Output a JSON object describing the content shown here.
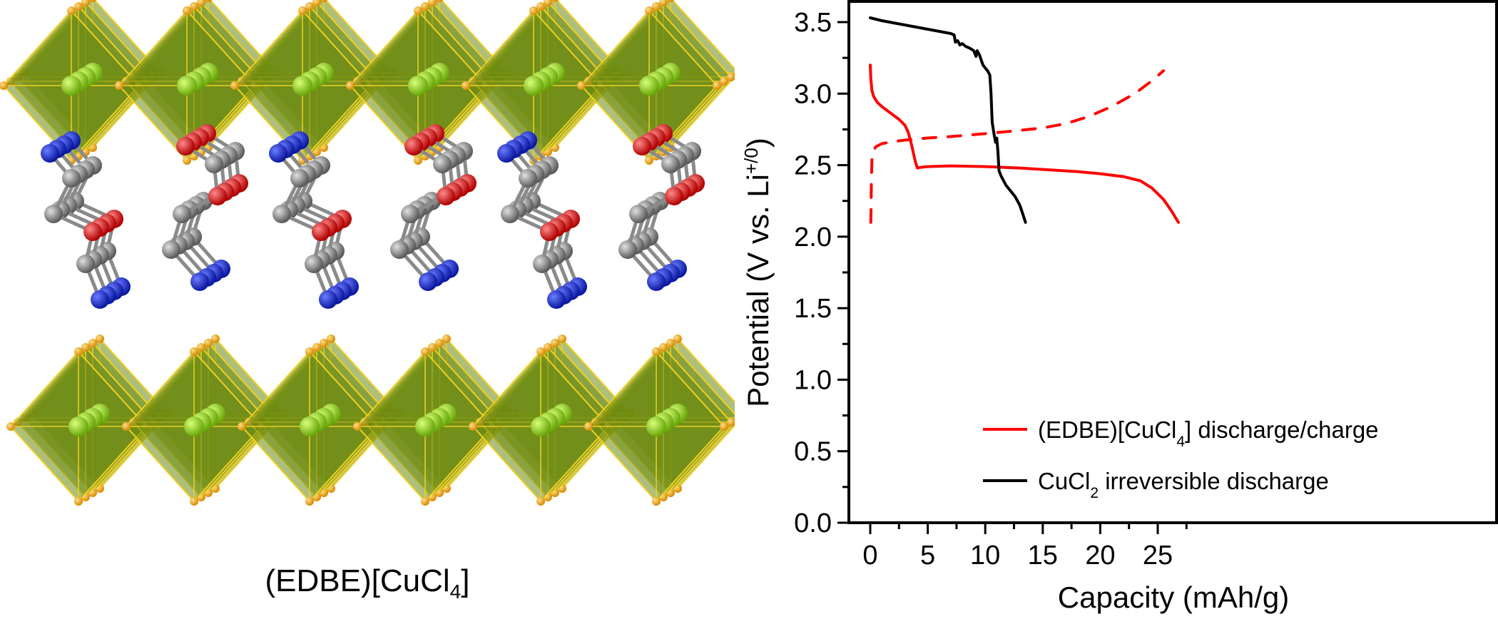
{
  "figure": {
    "left_panel": {
      "caption_main": "(EDBE)[CuCl",
      "caption_sub": "4",
      "caption_tail": "]",
      "description": "Crystal structure of layered perovskite with corner-sharing CuCl6 octahedra and EDBE organic cations",
      "atom_colors": {
        "copper": "#8fd11a",
        "chlorine": "#f0a010",
        "nitrogen": "#1020c8",
        "carbon": "#808080",
        "oxygen": "#e00000",
        "octahedron_face": "#6b8a10",
        "octahedron_edge": "#f0d020"
      }
    }
  },
  "chart_data": {
    "type": "line",
    "title": "",
    "xlabel": "Capacity (mAh/g)",
    "ylabel_main": "Potential (V vs. Li",
    "ylabel_sup": "+/0",
    "ylabel_tail": ")",
    "xlim": [
      -1.2,
      28.5
    ],
    "ylim": [
      0.0,
      3.65
    ],
    "x_ticks": [
      0,
      5,
      10,
      15,
      20,
      25
    ],
    "x_tick_labels": [
      "0",
      "5",
      "10",
      "15",
      "20",
      "25"
    ],
    "y_ticks": [
      0.0,
      0.5,
      1.0,
      1.5,
      2.0,
      2.5,
      3.0,
      3.5
    ],
    "y_tick_labels": [
      "0.0",
      "0.5",
      "1.0",
      "1.5",
      "2.0",
      "2.5",
      "3.0",
      "3.5"
    ],
    "grid": false,
    "legend_position": "bottom-right",
    "legend": [
      {
        "label_main": "(EDBE)[CuCl",
        "label_sub": "4",
        "label_tail": "] discharge/charge",
        "color": "#ff0000"
      },
      {
        "label_main": "CuCl",
        "label_sub": "2",
        "label_tail": " irreversible discharge",
        "color": "#000000"
      }
    ],
    "series": [
      {
        "name": "(EDBE)[CuCl4] discharge",
        "color": "#ff0000",
        "style": "solid",
        "x": [
          0.0,
          0.05,
          0.15,
          0.3,
          0.6,
          1.0,
          1.5,
          2.0,
          2.5,
          3.0,
          3.3,
          3.6,
          3.9,
          4.1,
          4.4,
          5,
          7,
          10,
          13,
          15,
          18,
          20,
          22,
          23.5,
          24.5,
          25.5,
          26.2,
          26.8
        ],
        "y": [
          3.2,
          3.1,
          3.02,
          2.98,
          2.94,
          2.91,
          2.88,
          2.85,
          2.82,
          2.78,
          2.73,
          2.64,
          2.53,
          2.48,
          2.485,
          2.49,
          2.495,
          2.49,
          2.48,
          2.47,
          2.455,
          2.44,
          2.42,
          2.39,
          2.34,
          2.26,
          2.18,
          2.1
        ]
      },
      {
        "name": "(EDBE)[CuCl4] charge",
        "color": "#ff0000",
        "style": "dashed",
        "x": [
          0.05,
          0.1,
          0.15,
          0.25,
          0.5,
          1.0,
          2.0,
          3.0,
          5,
          7,
          10,
          12,
          15,
          17,
          19,
          21,
          23,
          24.5,
          25.5
        ],
        "y": [
          2.1,
          2.4,
          2.55,
          2.6,
          2.63,
          2.65,
          2.665,
          2.675,
          2.69,
          2.7,
          2.72,
          2.735,
          2.76,
          2.79,
          2.84,
          2.91,
          3.0,
          3.09,
          3.16
        ]
      },
      {
        "name": "CuCl2 irreversible discharge",
        "color": "#000000",
        "style": "solid",
        "x": [
          0.0,
          0.5,
          1.0,
          2.0,
          3.0,
          4.0,
          5.0,
          6.0,
          7.0,
          7.3,
          7.4,
          7.6,
          7.8,
          8.0,
          8.3,
          8.6,
          9.0,
          9.2,
          9.3,
          9.5,
          9.8,
          10.2,
          10.4,
          10.5,
          10.6,
          10.8,
          10.9,
          11.0,
          11.1,
          11.2,
          11.4,
          11.8,
          12.2,
          12.6,
          13.0,
          13.3,
          13.5
        ],
        "y": [
          3.53,
          3.52,
          3.51,
          3.495,
          3.48,
          3.465,
          3.45,
          3.435,
          3.42,
          3.41,
          3.36,
          3.37,
          3.34,
          3.35,
          3.33,
          3.32,
          3.3,
          3.26,
          3.3,
          3.27,
          3.2,
          3.16,
          3.13,
          3.0,
          2.8,
          2.7,
          2.66,
          2.69,
          2.6,
          2.46,
          2.42,
          2.36,
          2.32,
          2.28,
          2.22,
          2.15,
          2.1
        ]
      }
    ]
  }
}
